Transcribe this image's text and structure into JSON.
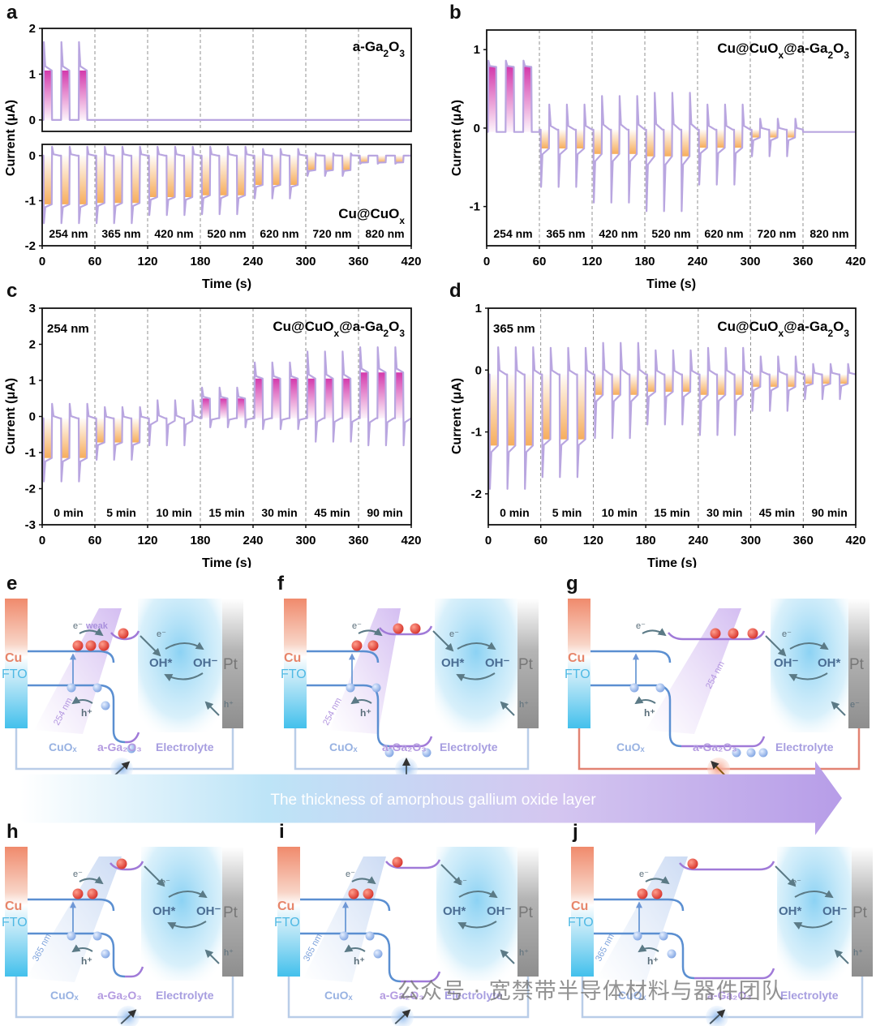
{
  "panel_letters": {
    "a": "a",
    "b": "b",
    "c": "c",
    "d": "d",
    "e": "e",
    "f": "f",
    "g": "g",
    "h": "h",
    "i": "i",
    "j": "j"
  },
  "chart_data": [
    {
      "id": "a-top",
      "type": "line",
      "panel": "a",
      "title": "",
      "annotation": "a-Ga2O3",
      "xlabel": "",
      "ylabel": "Current (μA)",
      "xlim": [
        0,
        420
      ],
      "ylim": [
        -0.25,
        2
      ],
      "yticks": [
        0,
        1,
        2
      ],
      "xticks": [],
      "dividers": [
        60,
        120,
        180,
        240,
        300,
        360
      ],
      "segment_labels": [],
      "fill": "magenta",
      "segments": [
        {
          "on": 1.08,
          "spike": 1.7,
          "off": 0,
          "off_spike": 0,
          "cycles": 3
        }
      ],
      "baseline_after": 0
    },
    {
      "id": "a-bottom",
      "type": "line",
      "panel": "a",
      "annotation": "Cu@CuOx",
      "xlabel": "Time (s)",
      "ylabel": "Current (μA)",
      "xlim": [
        0,
        420
      ],
      "ylim": [
        -2,
        0.25
      ],
      "yticks": [
        -2,
        -1,
        0
      ],
      "xticks": [
        0,
        60,
        120,
        180,
        240,
        300,
        360,
        420
      ],
      "dividers": [
        60,
        120,
        180,
        240,
        300,
        360
      ],
      "segment_labels": [
        "254 nm",
        "365 nm",
        "420 nm",
        "520 nm",
        "620 nm",
        "720 nm",
        "820 nm"
      ],
      "fill": "orange",
      "segments": [
        {
          "on": -1.08,
          "spike": -1.5,
          "off": 0,
          "off_spike": 0.2,
          "cycles": 3
        },
        {
          "on": -1.05,
          "spike": -1.5,
          "off": 0,
          "off_spike": 0.2,
          "cycles": 3
        },
        {
          "on": -0.92,
          "spike": -1.32,
          "off": 0,
          "off_spike": 0.2,
          "cycles": 3
        },
        {
          "on": -0.88,
          "spike": -1.3,
          "off": 0,
          "off_spike": 0.2,
          "cycles": 3
        },
        {
          "on": -0.65,
          "spike": -0.95,
          "off": 0,
          "off_spike": 0.15,
          "cycles": 3
        },
        {
          "on": -0.32,
          "spike": -0.45,
          "off": 0,
          "off_spike": 0.05,
          "cycles": 3
        },
        {
          "on": -0.15,
          "spike": -0.18,
          "off": 0,
          "off_spike": 0,
          "cycles": 3
        }
      ]
    },
    {
      "id": "b",
      "type": "line",
      "panel": "b",
      "annotation": "Cu@CuOx@a-Ga2O3",
      "xlabel": "Time (s)",
      "ylabel": "Current (μA)",
      "xlim": [
        0,
        420
      ],
      "ylim": [
        -1.5,
        1.25
      ],
      "yticks": [
        -1,
        0,
        1
      ],
      "xticks": [
        0,
        60,
        120,
        180,
        240,
        300,
        360,
        420
      ],
      "dividers": [
        60,
        120,
        180,
        240,
        300,
        360
      ],
      "segment_labels": [
        "254 nm",
        "365 nm",
        "420 nm",
        "520 nm",
        "620 nm",
        "720 nm",
        "820 nm"
      ],
      "segments": [
        {
          "on": 0.78,
          "spike": 0.86,
          "off": -0.05,
          "off_spike": -0.05,
          "cycles": 3,
          "fill": "magenta"
        },
        {
          "on": -0.26,
          "spike": -0.75,
          "off": -0.02,
          "off_spike": 0.3,
          "cycles": 3,
          "fill": "orange"
        },
        {
          "on": -0.33,
          "spike": -0.95,
          "off": -0.02,
          "off_spike": 0.41,
          "cycles": 3,
          "fill": "orange"
        },
        {
          "on": -0.36,
          "spike": -1.06,
          "off": -0.02,
          "off_spike": 0.45,
          "cycles": 3,
          "fill": "orange"
        },
        {
          "on": -0.25,
          "spike": -0.72,
          "off": -0.02,
          "off_spike": 0.3,
          "cycles": 3,
          "fill": "orange"
        },
        {
          "on": -0.12,
          "spike": -0.36,
          "off": -0.02,
          "off_spike": 0.12,
          "cycles": 3,
          "fill": "orange"
        },
        {
          "on": -0.05,
          "spike": -0.05,
          "off": -0.05,
          "off_spike": -0.05,
          "cycles": 3,
          "fill": "none"
        }
      ]
    },
    {
      "id": "c",
      "type": "line",
      "panel": "c",
      "annotation": "Cu@CuOx@a-Ga2O3",
      "corner_label": "254 nm",
      "xlabel": "Time (s)",
      "ylabel": "Current (μA)",
      "xlim": [
        0,
        420
      ],
      "ylim": [
        -3,
        3
      ],
      "yticks": [
        -3,
        -2,
        -1,
        0,
        1,
        2,
        3
      ],
      "xticks": [
        0,
        60,
        120,
        180,
        240,
        300,
        360,
        420
      ],
      "dividers": [
        60,
        120,
        180,
        240,
        300,
        360
      ],
      "segment_labels": [
        "0 min",
        "5 min",
        "10 min",
        "15 min",
        "30 min",
        "45 min",
        "90 min"
      ],
      "segments": [
        {
          "on": -1.15,
          "spike": -1.8,
          "off": -0.05,
          "off_spike": 0.35,
          "cycles": 3,
          "fill": "orange"
        },
        {
          "on": -0.72,
          "spike": -1.2,
          "off": -0.05,
          "off_spike": 0.26,
          "cycles": 3,
          "fill": "orange"
        },
        {
          "on": -0.12,
          "spike": -0.8,
          "off": -0.05,
          "off_spike": 0.45,
          "cycles": 3,
          "fill": "none"
        },
        {
          "on": 0.5,
          "spike": 0.8,
          "off": -0.05,
          "off_spike": -0.3,
          "cycles": 3,
          "fill": "magenta"
        },
        {
          "on": 1.05,
          "spike": 1.5,
          "off": -0.05,
          "off_spike": -0.35,
          "cycles": 3,
          "fill": "magenta"
        },
        {
          "on": 1.05,
          "spike": 1.8,
          "off": -0.05,
          "off_spike": -0.7,
          "cycles": 3,
          "fill": "magenta"
        },
        {
          "on": 1.22,
          "spike": 1.92,
          "off": -0.05,
          "off_spike": -0.8,
          "cycles": 3,
          "fill": "magenta"
        }
      ]
    },
    {
      "id": "d",
      "type": "line",
      "panel": "d",
      "annotation": "Cu@CuOx@a-Ga2O3",
      "corner_label": "365 nm",
      "xlabel": "Time (s)",
      "ylabel": "Current (μA)",
      "xlim": [
        0,
        420
      ],
      "ylim": [
        -2.5,
        1
      ],
      "yticks": [
        -2,
        -1,
        0,
        1
      ],
      "xticks": [
        0,
        60,
        120,
        180,
        240,
        300,
        360,
        420
      ],
      "dividers": [
        60,
        120,
        180,
        240,
        300,
        360
      ],
      "segment_labels": [
        "0 min",
        "5 min",
        "10 min",
        "15 min",
        "30 min",
        "45 min",
        "90 min"
      ],
      "segments": [
        {
          "on": -1.22,
          "spike": -1.92,
          "off": -0.07,
          "off_spike": 0.37,
          "cycles": 3,
          "fill": "orange"
        },
        {
          "on": -1.12,
          "spike": -1.73,
          "off": -0.07,
          "off_spike": 0.36,
          "cycles": 3,
          "fill": "orange"
        },
        {
          "on": -0.4,
          "spike": -1.1,
          "off": -0.07,
          "off_spike": 0.44,
          "cycles": 3,
          "fill": "orange"
        },
        {
          "on": -0.35,
          "spike": -0.88,
          "off": -0.07,
          "off_spike": 0.32,
          "cycles": 3,
          "fill": "orange"
        },
        {
          "on": -0.4,
          "spike": -1.05,
          "off": -0.07,
          "off_spike": 0.36,
          "cycles": 3,
          "fill": "orange"
        },
        {
          "on": -0.27,
          "spike": -0.66,
          "off": -0.07,
          "off_spike": 0.22,
          "cycles": 3,
          "fill": "orange"
        },
        {
          "on": -0.22,
          "spike": -0.47,
          "off": -0.07,
          "off_spike": 0.1,
          "cycles": 3,
          "fill": "orange"
        }
      ]
    }
  ],
  "schematics": {
    "e": {
      "wavelength": "254 nm",
      "weak": "weak",
      "cu": "Cu",
      "fto": "FTO",
      "pt": "Pt",
      "oh_left": "OH*",
      "oh_right": "OH⁻",
      "cuox": "CuOₓ",
      "ga2o3": "a-Ga₂O₃",
      "electrolyte": "Electrolyte",
      "e": "e⁻",
      "h": "h⁺"
    },
    "f": {
      "wavelength": "254 nm",
      "cu": "Cu",
      "fto": "FTO",
      "pt": "Pt",
      "oh_left": "OH*",
      "oh_right": "OH⁻",
      "cuox": "CuOₓ",
      "ga2o3": "a-Ga₂O₃",
      "electrolyte": "Electrolyte",
      "e": "e⁻",
      "h": "h⁺"
    },
    "g": {
      "wavelength": "254 nm",
      "cu": "Cu",
      "fto": "FTO",
      "pt": "Pt",
      "oh_left": "OH⁻",
      "oh_right": "OH*",
      "cuox": "CuOₓ",
      "ga2o3": "a-Ga₂O₃",
      "electrolyte": "Electrolyte",
      "e": "e⁻",
      "h": "h⁺"
    },
    "h": {
      "wavelength": "365 nm",
      "cu": "Cu",
      "fto": "FTO",
      "pt": "Pt",
      "oh_left": "OH*",
      "oh_right": "OH⁻",
      "cuox": "CuOₓ",
      "ga2o3": "a-Ga₂O₃",
      "electrolyte": "Electrolyte",
      "e": "e⁻",
      "h": "h⁺"
    },
    "i": {
      "wavelength": "365 nm",
      "cu": "Cu",
      "fto": "FTO",
      "pt": "Pt",
      "oh_left": "OH*",
      "oh_right": "OH⁻",
      "cuox": "CuOₓ",
      "ga2o3": "a-Ga₂O₃",
      "electrolyte": "Electrolyte",
      "e": "e⁻",
      "h": "h⁺"
    },
    "j": {
      "wavelength": "365 nm",
      "cu": "Cu",
      "fto": "FTO",
      "pt": "Pt",
      "oh_left": "OH*",
      "oh_right": "OH⁻",
      "cuox": "CuOₓ",
      "ga2o3": "a-Ga₂O₃",
      "electrolyte": "Electrolyte",
      "e": "e⁻",
      "h": "h⁺"
    }
  },
  "thickness_arrow": {
    "label": "The thickness of amorphous gallium oxide layer"
  },
  "watermark": "公众号 · 宽禁带半导体材料与器件团队",
  "colors": {
    "curve": "#b9a6e0",
    "magenta_fill": "#d12fa8",
    "orange_fill": "#f6a953",
    "divider": "#777777",
    "band_blue": "#5b8fd1",
    "band_purple": "#a07ad8",
    "electron": "#e0483a",
    "hole": "#8fb3ea",
    "cu_top": "#f08a6c",
    "fto_bottom": "#43c0ec",
    "pt_gray": "#9a9a9a",
    "electrolyte_blue": "#8fd3f3",
    "text_gray_blue": "#4a6d93",
    "circuit_red": "#e28373"
  }
}
